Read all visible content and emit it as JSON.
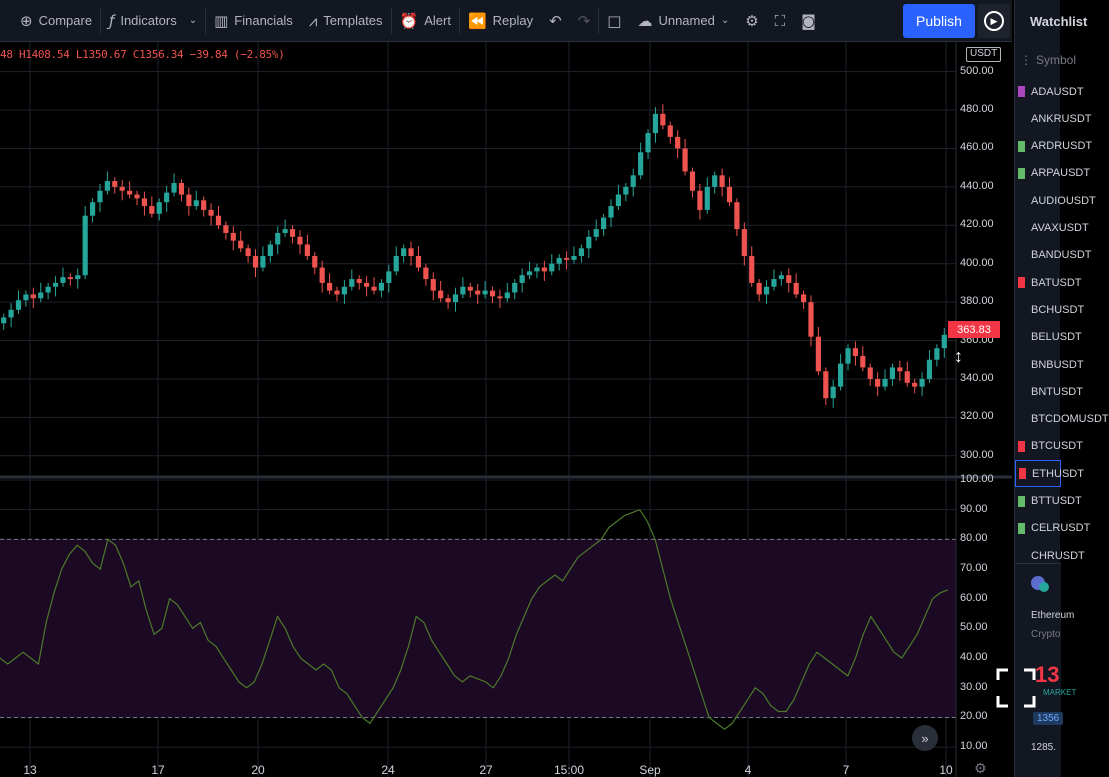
{
  "toolbar": {
    "compare": "Compare",
    "indicators": "Indicators",
    "financials": "Financials",
    "templates": "Templates",
    "alert": "Alert",
    "replay": "Replay",
    "layout_name": "Unnamed",
    "publish": "Publish"
  },
  "legend": {
    "ohlc": "48 H1408.54 L1350.67 C1356.34 −39.84 (−2.85%)",
    "currency": "USDT"
  },
  "price_axis": {
    "labels": [
      "500.00",
      "480.00",
      "460.00",
      "440.00",
      "420.00",
      "400.00",
      "380.00",
      "360.00",
      "340.00",
      "320.00",
      "300.00"
    ],
    "last_price": "363.83",
    "last_price_color": "#f23645"
  },
  "rsi_axis": {
    "labels": [
      "100.00",
      "90.00",
      "80.00",
      "70.00",
      "60.00",
      "50.00",
      "40.00",
      "30.00",
      "20.00",
      "10.00"
    ]
  },
  "time_axis": {
    "labels": [
      "13",
      "17",
      "20",
      "24",
      "27",
      "15:00",
      "Sep",
      "4",
      "7",
      "10"
    ]
  },
  "colors": {
    "up": "#26a69a",
    "down": "#ef5350",
    "rsi_line": "#4c7a2a",
    "rsi_band": "#1c0a24",
    "accent": "#2962ff"
  },
  "watchlist": {
    "title": "Watchlist",
    "search_placeholder": "Symbol",
    "items": [
      {
        "label": "ADAUSDT",
        "flag": "#ab47bc"
      },
      {
        "label": "ANKRUSDT",
        "flag": ""
      },
      {
        "label": "ARDRUSDT",
        "flag": "#66bb6a"
      },
      {
        "label": "ARPAUSDT",
        "flag": "#66bb6a"
      },
      {
        "label": "AUDIOUSDT",
        "flag": ""
      },
      {
        "label": "AVAXUSDT",
        "flag": ""
      },
      {
        "label": "BANDUSDT",
        "flag": ""
      },
      {
        "label": "BATUSDT",
        "flag": "#f23645"
      },
      {
        "label": "BCHUSDT",
        "flag": ""
      },
      {
        "label": "BELUSDT",
        "flag": ""
      },
      {
        "label": "BNBUSDT",
        "flag": ""
      },
      {
        "label": "BNTUSDT",
        "flag": ""
      },
      {
        "label": "BTCDOMUSDT",
        "flag": ""
      },
      {
        "label": "BTCUSDT",
        "flag": "#f23645"
      },
      {
        "label": "ETHUSDT",
        "flag": "#f23645",
        "selected": true
      },
      {
        "label": "BTTUSDT",
        "flag": "#66bb6a"
      },
      {
        "label": "CELRUSDT",
        "flag": "#66bb6a"
      },
      {
        "label": "CHRUSDT",
        "flag": ""
      }
    ],
    "detail": {
      "name": "Ethereum",
      "category": "Crypto",
      "price": "13",
      "market": "MARKET",
      "pill": "1356",
      "low": "1285."
    }
  },
  "chart_data": [
    {
      "type": "candlestick",
      "title": "",
      "ylabel": "",
      "ylim": [
        290,
        505
      ],
      "x_ticks": [
        "13",
        "17",
        "20",
        "24",
        "27",
        "15:00",
        "Sep",
        "4",
        "7",
        "10"
      ],
      "close_values": [
        372,
        376,
        381,
        384,
        382,
        385,
        388,
        390,
        393,
        392,
        394,
        425,
        432,
        438,
        443,
        440,
        438,
        436,
        434,
        430,
        426,
        432,
        437,
        442,
        436,
        430,
        433,
        428,
        425,
        420,
        416,
        412,
        408,
        404,
        398,
        404,
        410,
        416,
        418,
        414,
        410,
        404,
        398,
        390,
        386,
        384,
        388,
        392,
        390,
        388,
        386,
        390,
        396,
        404,
        408,
        404,
        398,
        392,
        386,
        382,
        380,
        384,
        388,
        386,
        384,
        386,
        383,
        382,
        385,
        390,
        394,
        396,
        398,
        396,
        400,
        403,
        402,
        404,
        408,
        414,
        418,
        424,
        430,
        436,
        440,
        446,
        458,
        468,
        478,
        472,
        466,
        460,
        448,
        438,
        428,
        440,
        446,
        440,
        432,
        418,
        404,
        390,
        384,
        388,
        392,
        394,
        390,
        384,
        380,
        362,
        344,
        330,
        336,
        348,
        356,
        352,
        346,
        340,
        336,
        340,
        346,
        344,
        338,
        336,
        340,
        350,
        356,
        363
      ],
      "up_color": "#26a69a",
      "down_color": "#ef5350"
    },
    {
      "type": "line",
      "title": "",
      "ylim": [
        5,
        100
      ],
      "bands": [
        20,
        80
      ],
      "values": [
        40,
        38,
        40,
        42,
        40,
        38,
        52,
        62,
        70,
        75,
        78,
        76,
        72,
        70,
        80,
        78,
        72,
        64,
        66,
        56,
        48,
        50,
        60,
        58,
        54,
        50,
        52,
        46,
        44,
        40,
        36,
        32,
        30,
        32,
        38,
        46,
        54,
        50,
        44,
        40,
        38,
        36,
        38,
        36,
        30,
        28,
        24,
        20,
        18,
        22,
        26,
        30,
        36,
        44,
        54,
        52,
        46,
        42,
        38,
        34,
        32,
        34,
        33,
        32,
        30,
        34,
        40,
        48,
        54,
        60,
        64,
        66,
        68,
        66,
        70,
        74,
        76,
        78,
        80,
        84,
        86,
        88,
        89,
        90,
        86,
        80,
        70,
        60,
        52,
        44,
        36,
        28,
        20,
        18,
        16,
        18,
        22,
        26,
        30,
        28,
        24,
        22,
        22,
        26,
        32,
        38,
        42,
        40,
        38,
        36,
        34,
        40,
        48,
        54,
        50,
        46,
        42,
        40,
        44,
        48,
        54,
        60,
        62,
        63
      ]
    }
  ]
}
